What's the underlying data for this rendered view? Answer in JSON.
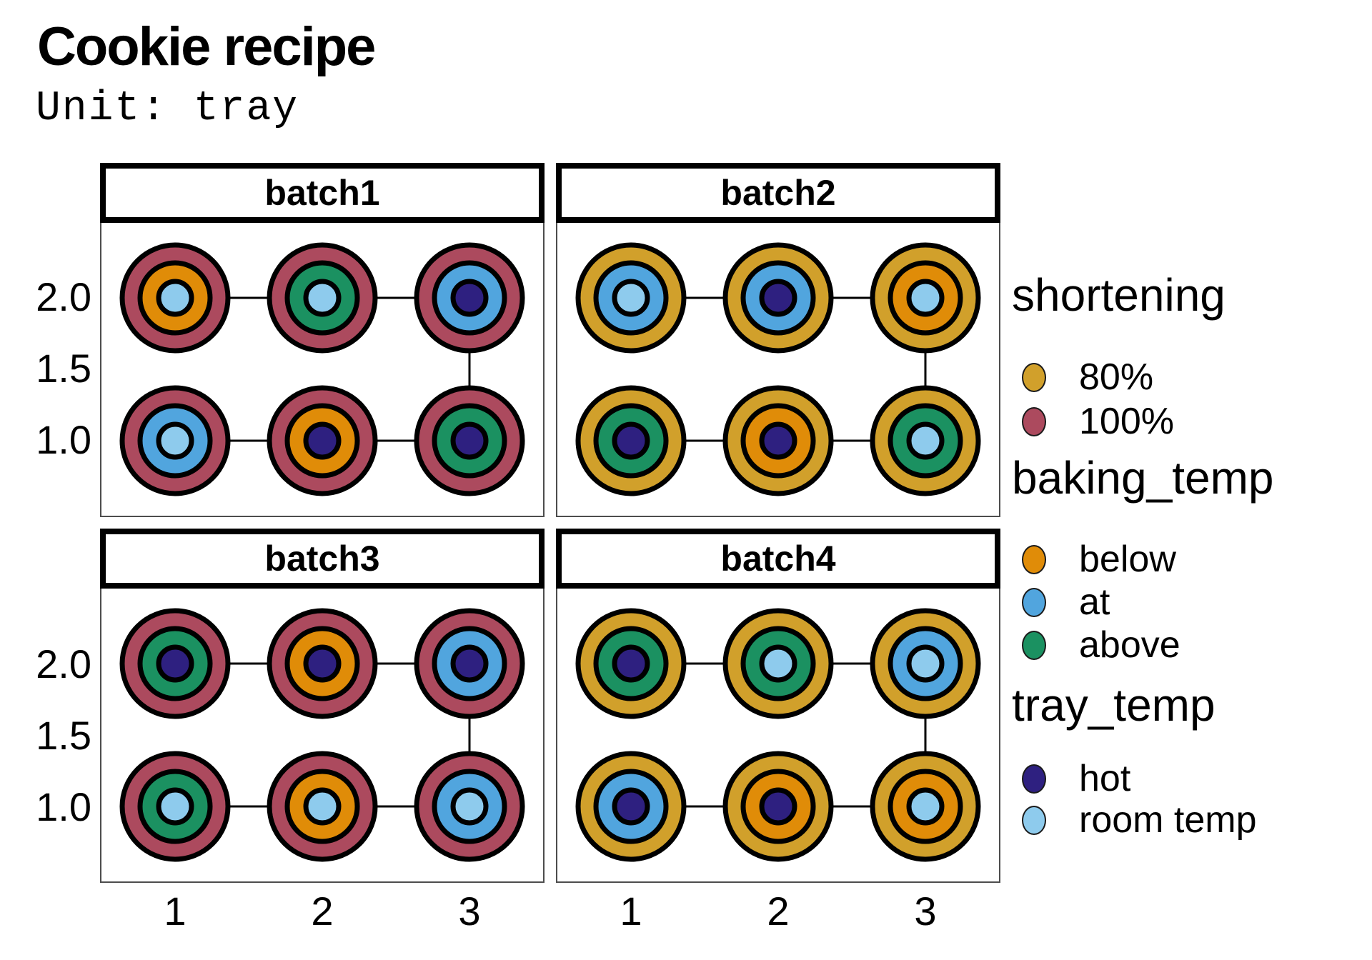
{
  "title": "Cookie recipe",
  "subtitle": "Unit: tray",
  "chart_data": {
    "type": "scatter",
    "chart_kind": "experimental-design-grid",
    "title": "Cookie recipe",
    "subtitle": "Unit: tray",
    "x_ticks": [
      "1",
      "2",
      "3"
    ],
    "y_ticks": [
      "2.0",
      "1.5",
      "1.0"
    ],
    "x_range": [
      0.5,
      3.5
    ],
    "y_range": [
      0.48,
      2.52
    ],
    "grid": false,
    "legend_position": "right",
    "path_order": [
      [
        1,
        2
      ],
      [
        2,
        2
      ],
      [
        3,
        2
      ],
      [
        3,
        1
      ],
      [
        2,
        1
      ],
      [
        1,
        1
      ]
    ],
    "facets": [
      {
        "label": "batch1",
        "points": [
          {
            "x": 1,
            "y": 2,
            "shortening": "100%",
            "baking_temp": "below",
            "tray_temp": "room temp"
          },
          {
            "x": 2,
            "y": 2,
            "shortening": "100%",
            "baking_temp": "above",
            "tray_temp": "room temp"
          },
          {
            "x": 3,
            "y": 2,
            "shortening": "100%",
            "baking_temp": "at",
            "tray_temp": "hot"
          },
          {
            "x": 1,
            "y": 1,
            "shortening": "100%",
            "baking_temp": "at",
            "tray_temp": "room temp"
          },
          {
            "x": 2,
            "y": 1,
            "shortening": "100%",
            "baking_temp": "below",
            "tray_temp": "hot"
          },
          {
            "x": 3,
            "y": 1,
            "shortening": "100%",
            "baking_temp": "above",
            "tray_temp": "hot"
          }
        ]
      },
      {
        "label": "batch2",
        "points": [
          {
            "x": 1,
            "y": 2,
            "shortening": "80%",
            "baking_temp": "at",
            "tray_temp": "room temp"
          },
          {
            "x": 2,
            "y": 2,
            "shortening": "80%",
            "baking_temp": "at",
            "tray_temp": "hot"
          },
          {
            "x": 3,
            "y": 2,
            "shortening": "80%",
            "baking_temp": "below",
            "tray_temp": "room temp"
          },
          {
            "x": 1,
            "y": 1,
            "shortening": "80%",
            "baking_temp": "above",
            "tray_temp": "hot"
          },
          {
            "x": 2,
            "y": 1,
            "shortening": "80%",
            "baking_temp": "below",
            "tray_temp": "hot"
          },
          {
            "x": 3,
            "y": 1,
            "shortening": "80%",
            "baking_temp": "above",
            "tray_temp": "room temp"
          }
        ]
      },
      {
        "label": "batch3",
        "points": [
          {
            "x": 1,
            "y": 2,
            "shortening": "100%",
            "baking_temp": "above",
            "tray_temp": "hot"
          },
          {
            "x": 2,
            "y": 2,
            "shortening": "100%",
            "baking_temp": "below",
            "tray_temp": "hot"
          },
          {
            "x": 3,
            "y": 2,
            "shortening": "100%",
            "baking_temp": "at",
            "tray_temp": "hot"
          },
          {
            "x": 1,
            "y": 1,
            "shortening": "100%",
            "baking_temp": "above",
            "tray_temp": "room temp"
          },
          {
            "x": 2,
            "y": 1,
            "shortening": "100%",
            "baking_temp": "below",
            "tray_temp": "room temp"
          },
          {
            "x": 3,
            "y": 1,
            "shortening": "100%",
            "baking_temp": "at",
            "tray_temp": "room temp"
          }
        ]
      },
      {
        "label": "batch4",
        "points": [
          {
            "x": 1,
            "y": 2,
            "shortening": "80%",
            "baking_temp": "above",
            "tray_temp": "hot"
          },
          {
            "x": 2,
            "y": 2,
            "shortening": "80%",
            "baking_temp": "above",
            "tray_temp": "room temp"
          },
          {
            "x": 3,
            "y": 2,
            "shortening": "80%",
            "baking_temp": "at",
            "tray_temp": "room temp"
          },
          {
            "x": 1,
            "y": 1,
            "shortening": "80%",
            "baking_temp": "at",
            "tray_temp": "hot"
          },
          {
            "x": 2,
            "y": 1,
            "shortening": "80%",
            "baking_temp": "below",
            "tray_temp": "hot"
          },
          {
            "x": 3,
            "y": 1,
            "shortening": "80%",
            "baking_temp": "below",
            "tray_temp": "room temp"
          }
        ]
      }
    ]
  },
  "colors": {
    "shortening": {
      "80%": "#D1A02B",
      "100%": "#AC4A5E"
    },
    "baking_temp": {
      "below": "#E08C08",
      "at": "#51A5DE",
      "above": "#1B9161"
    },
    "tray_temp": {
      "hot": "#2E2080",
      "room temp": "#8ECBED"
    },
    "ring_stroke": "#000000",
    "connector": "#000000"
  },
  "legend": {
    "sections": [
      {
        "title": "shortening",
        "items": [
          {
            "label": "80%",
            "color": "#D1A02B"
          },
          {
            "label": "100%",
            "color": "#AC4A5E"
          }
        ]
      },
      {
        "title": "baking_temp",
        "items": [
          {
            "label": "below",
            "color": "#E08C08"
          },
          {
            "label": "at",
            "color": "#51A5DE"
          },
          {
            "label": "above",
            "color": "#1B9161"
          }
        ]
      },
      {
        "title": "tray_temp",
        "items": [
          {
            "label": "hot",
            "color": "#2E2080"
          },
          {
            "label": "room temp",
            "color": "#8ECBED"
          }
        ]
      }
    ]
  }
}
